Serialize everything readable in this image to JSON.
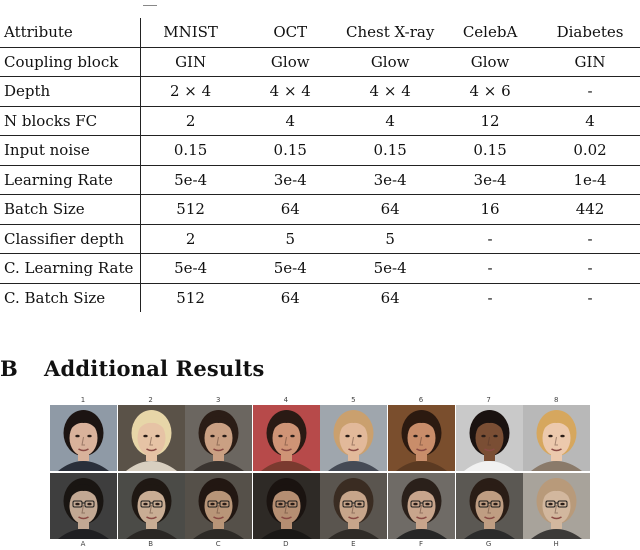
{
  "table": {
    "columns": [
      "Attribute",
      "MNIST",
      "OCT",
      "Chest X-ray",
      "CelebA",
      "Diabetes"
    ],
    "rows": [
      [
        "Coupling block",
        "GIN",
        "Glow",
        "Glow",
        "Glow",
        "GIN"
      ],
      [
        "Depth",
        "2 × 4",
        "4 × 4",
        "4 × 4",
        "4 × 6",
        "-"
      ],
      [
        "N blocks FC",
        "2",
        "4",
        "4",
        "12",
        "4"
      ],
      [
        "Input noise",
        "0.15",
        "0.15",
        "0.15",
        "0.15",
        "0.02"
      ],
      [
        "Learning Rate",
        "5e-4",
        "3e-4",
        "3e-4",
        "3e-4",
        "1e-4"
      ],
      [
        "Batch Size",
        "512",
        "64",
        "64",
        "16",
        "442"
      ],
      [
        "Classifier depth",
        "2",
        "5",
        "5",
        "-",
        "-"
      ],
      [
        "C. Learning Rate",
        "5e-4",
        "5e-4",
        "5e-4",
        "-",
        "-"
      ],
      [
        "C. Batch Size",
        "512",
        "64",
        "64",
        "-",
        "-"
      ]
    ]
  },
  "section": {
    "number": "B",
    "title": "Additional Results"
  },
  "figure": {
    "top_labels": [
      "1",
      "2",
      "3",
      "4",
      "5",
      "6",
      "7",
      "8"
    ],
    "bottom_labels": [
      "A",
      "B",
      "C",
      "D",
      "E",
      "F",
      "G",
      "H"
    ],
    "top_images": [
      {
        "bg": "#8f9aa6",
        "skin": "#d9b29b",
        "hair": "#1c1412",
        "shirt": "#2a2f3a"
      },
      {
        "bg": "#5a5248",
        "skin": "#e6c3a5",
        "hair": "#e7d6a8",
        "shirt": "#d8cfc0"
      },
      {
        "bg": "#6b6660",
        "skin": "#caa083",
        "hair": "#2b1d16",
        "shirt": "#3a3430"
      },
      {
        "bg": "#b74a4a",
        "skin": "#cf9476",
        "hair": "#2a1a14",
        "shirt": "#7a3a2f"
      },
      {
        "bg": "#9fa6ad",
        "skin": "#e2b99a",
        "hair": "#caa06e",
        "shirt": "#454a55"
      },
      {
        "bg": "#7a4e2d",
        "skin": "#c98d6a",
        "hair": "#2c1a10",
        "shirt": "#5b3a22"
      },
      {
        "bg": "#c9c9c9",
        "skin": "#7a4e34",
        "hair": "#1a1210",
        "shirt": "#f1f1f1"
      },
      {
        "bg": "#b8b8b8",
        "skin": "#ecc9ad",
        "hair": "#d6a75e",
        "shirt": "#8a7a6a"
      }
    ],
    "bottom_images": [
      {
        "bg": "#3e3e3e",
        "skin": "#c2a893",
        "hair": "#191512",
        "shirt": "#1f1f22"
      },
      {
        "bg": "#4b4b47",
        "skin": "#c9ad94",
        "hair": "#1f1813",
        "shirt": "#2a2724"
      },
      {
        "bg": "#555049",
        "skin": "#b89578",
        "hair": "#221712",
        "shirt": "#2d2a26"
      },
      {
        "bg": "#2e2a26",
        "skin": "#b58e72",
        "hair": "#1a1310",
        "shirt": "#1a1816"
      },
      {
        "bg": "#5a554f",
        "skin": "#c7a58a",
        "hair": "#3a2c22",
        "shirt": "#2f2b27"
      },
      {
        "bg": "#6f6b66",
        "skin": "#c8a58c",
        "hair": "#2a201a",
        "shirt": "#262626"
      },
      {
        "bg": "#5b5853",
        "skin": "#bf9d82",
        "hair": "#2a1d16",
        "shirt": "#2b2b2b"
      },
      {
        "bg": "#a8a39b",
        "skin": "#d2b79e",
        "hair": "#b89a7a",
        "shirt": "#3c3a38"
      }
    ]
  }
}
